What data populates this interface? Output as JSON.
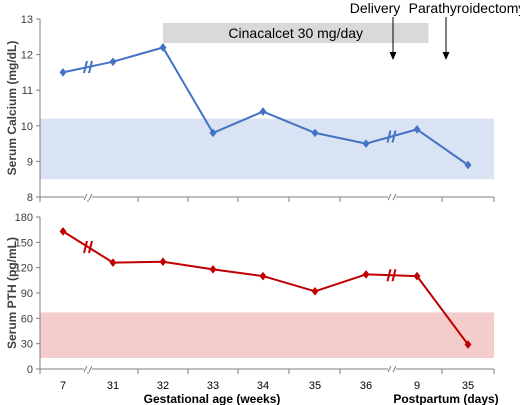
{
  "chart_data": [
    {
      "type": "line",
      "ylabel": "Serum Calcium (mg/dL)",
      "ylim": [
        8,
        13
      ],
      "yticks": [
        8,
        9,
        10,
        11,
        12,
        13
      ],
      "x_positions": [
        0,
        1,
        2,
        3,
        4,
        5,
        6,
        7,
        8
      ],
      "x_ticklabels": [
        "7",
        "31",
        "32",
        "33",
        "34",
        "35",
        "36",
        "9",
        "35"
      ],
      "series": [
        {
          "values": [
            11.5,
            11.8,
            12.2,
            9.8,
            10.4,
            9.8,
            9.5,
            9.9,
            8.9
          ],
          "color": "#4472c4"
        }
      ],
      "reference_band": {
        "min": 8.5,
        "max": 10.2,
        "color": "#dae3f3"
      },
      "axis_breaks": [
        "after 7",
        "between 36 and 9"
      ],
      "annotations": {
        "therapy_bar": {
          "label": "Cinacalcet 30 mg/day",
          "x_start": 2,
          "x_end": 7.5,
          "color": "#d9d9d9"
        },
        "arrows": [
          {
            "label": "Delivery",
            "x": 6.5
          },
          {
            "label": "Parathyroidectomy",
            "x": 7.5
          }
        ]
      }
    },
    {
      "type": "line",
      "ylabel": "Serum PTH  (pg/mL)",
      "ylim": [
        0,
        180
      ],
      "yticks": [
        0,
        30,
        60,
        90,
        120,
        150,
        180
      ],
      "x_positions": [
        0,
        1,
        2,
        3,
        4,
        5,
        6,
        7,
        8
      ],
      "x_ticklabels": [
        "7",
        "31",
        "32",
        "33",
        "34",
        "35",
        "36",
        "9",
        "35"
      ],
      "series": [
        {
          "values": [
            163,
            126,
            127,
            118,
            110,
            92,
            112,
            110,
            29
          ],
          "color": "#c00000"
        }
      ],
      "reference_band": {
        "min": 13,
        "max": 67,
        "color": "#f4cccc"
      },
      "axis_breaks": [
        "after 7",
        "between 36 and 9"
      ],
      "xlabel_left": "Gestational age (weeks)",
      "xlabel_right": "Postpartum (days)"
    }
  ]
}
